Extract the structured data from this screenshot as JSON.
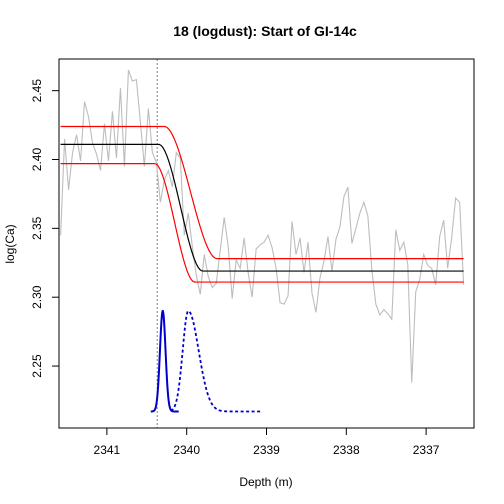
{
  "chart_data": {
    "type": "line",
    "title": "18 (logdust): Start of GI-14c",
    "xlabel": "Depth (m)",
    "ylabel": "log(Ca)",
    "xlim": [
      2341.6,
      2336.4
    ],
    "ylim": [
      2.205,
      2.473
    ],
    "x_axis_reversed": true,
    "grid": false,
    "legend": "none",
    "x_ticks": [
      2341,
      2340,
      2339,
      2338,
      2337
    ],
    "x_tick_labels": [
      "2341",
      "2340",
      "2339",
      "2338",
      "2337"
    ],
    "y_ticks": [
      2.25,
      2.3,
      2.35,
      2.4,
      2.45
    ],
    "y_tick_labels": [
      "2.25",
      "2.30",
      "2.35",
      "2.40",
      "2.45"
    ],
    "onset_depth": 2340.37,
    "data_series": {
      "color": "#bdbdbd",
      "x": [
        2341.58,
        2341.53,
        2341.48,
        2341.43,
        2341.38,
        2341.33,
        2341.28,
        2341.23,
        2341.18,
        2341.13,
        2341.08,
        2341.03,
        2340.98,
        2340.93,
        2340.88,
        2340.83,
        2340.78,
        2340.73,
        2340.68,
        2340.63,
        2340.58,
        2340.53,
        2340.48,
        2340.43,
        2340.38,
        2340.33,
        2340.28,
        2340.23,
        2340.18,
        2340.13,
        2340.08,
        2340.03,
        2339.98,
        2339.93,
        2339.88,
        2339.83,
        2339.78,
        2339.73,
        2339.68,
        2339.63,
        2339.58,
        2339.53,
        2339.48,
        2339.43,
        2339.38,
        2339.33,
        2339.28,
        2339.23,
        2339.18,
        2339.13,
        2339.08,
        2339.03,
        2338.98,
        2338.93,
        2338.88,
        2338.83,
        2338.78,
        2338.73,
        2338.68,
        2338.63,
        2338.58,
        2338.53,
        2338.48,
        2338.43,
        2338.38,
        2338.33,
        2338.28,
        2338.23,
        2338.18,
        2338.13,
        2338.08,
        2338.03,
        2337.98,
        2337.93,
        2337.88,
        2337.83,
        2337.78,
        2337.73,
        2337.68,
        2337.63,
        2337.58,
        2337.53,
        2337.48,
        2337.43,
        2337.38,
        2337.33,
        2337.28,
        2337.23,
        2337.18,
        2337.13,
        2337.08,
        2337.03,
        2336.98,
        2336.93,
        2336.88,
        2336.83,
        2336.78,
        2336.73,
        2336.68,
        2336.63,
        2336.58,
        2336.53
      ],
      "y": [
        2.345,
        2.415,
        2.378,
        2.405,
        2.418,
        2.399,
        2.442,
        2.431,
        2.412,
        2.404,
        2.392,
        2.426,
        2.399,
        2.435,
        2.401,
        2.452,
        2.395,
        2.465,
        2.457,
        2.458,
        2.427,
        2.395,
        2.437,
        2.405,
        2.398,
        2.369,
        2.385,
        2.392,
        2.38,
        2.405,
        2.401,
        2.345,
        2.361,
        2.337,
        2.316,
        2.302,
        2.331,
        2.315,
        2.307,
        2.31,
        2.334,
        2.358,
        2.337,
        2.299,
        2.327,
        2.321,
        2.343,
        2.318,
        2.3,
        2.335,
        2.338,
        2.34,
        2.345,
        2.336,
        2.321,
        2.296,
        2.295,
        2.301,
        2.355,
        2.331,
        2.343,
        2.318,
        2.34,
        2.303,
        2.289,
        2.314,
        2.326,
        2.344,
        2.319,
        2.342,
        2.351,
        2.373,
        2.38,
        2.339,
        2.35,
        2.361,
        2.369,
        2.359,
        2.32,
        2.295,
        2.287,
        2.291,
        2.288,
        2.284,
        2.349,
        2.334,
        2.34,
        2.324,
        2.238,
        2.304,
        2.313,
        2.331,
        2.323,
        2.321,
        2.309,
        2.344,
        2.356,
        2.321,
        2.343,
        2.372,
        2.369,
        2.309
      ]
    },
    "fit_series": {
      "color": "#000000",
      "x_start": 2341.58,
      "x_end": 2336.53,
      "level_before": 2.411,
      "level_after": 2.319,
      "transition_start": 2340.35,
      "transition_end": 2339.8
    },
    "bands": [
      {
        "color": "#ff0000",
        "level_before": 2.424,
        "level_after": 2.328,
        "transition_start": 2340.28,
        "transition_end": 2339.62
      },
      {
        "color": "#ff0000",
        "level_before": 2.397,
        "level_after": 2.311,
        "transition_start": 2340.4,
        "transition_end": 2339.9
      }
    ],
    "densities": [
      {
        "color": "#0000cc",
        "style": "solid",
        "baseline": 2.217,
        "peak": 2.29,
        "x_start": 2340.45,
        "x_end": 2340.1,
        "mode": 2340.3,
        "sd_left": 0.035,
        "sd_right": 0.035
      },
      {
        "color": "#0000cc",
        "style": "dotted",
        "baseline": 2.217,
        "peak": 2.29,
        "x_start": 2340.2,
        "x_end": 2339.05,
        "mode": 2339.98,
        "sd_left": 0.07,
        "sd_right": 0.13
      }
    ]
  }
}
